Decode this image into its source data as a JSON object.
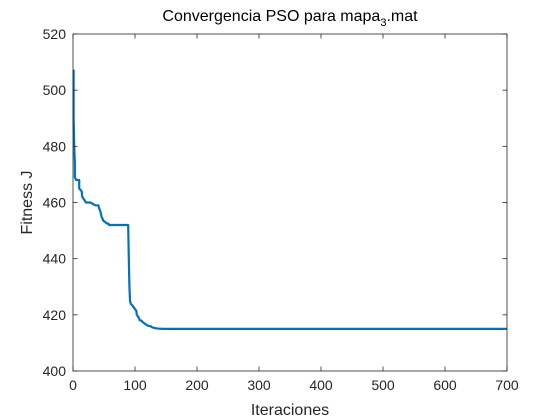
{
  "chart_data": {
    "type": "line",
    "title_main": "Convergencia PSO para mapa",
    "title_sub": "3",
    "title_suffix": ".mat",
    "xlabel": "Iteraciones",
    "ylabel": "Fitness J",
    "xlim": [
      0,
      700
    ],
    "ylim": [
      400,
      520
    ],
    "xticks": [
      0,
      100,
      200,
      300,
      400,
      500,
      600,
      700
    ],
    "yticks": [
      400,
      420,
      440,
      460,
      480,
      500,
      520
    ],
    "grid": false,
    "series": [
      {
        "color": "#0072BD",
        "x": [
          0,
          1,
          1,
          2,
          3,
          3,
          5,
          10,
          10,
          14,
          15,
          15,
          18,
          21,
          28,
          36,
          41,
          42,
          44,
          46,
          48,
          49,
          52,
          55,
          57,
          58,
          64,
          66,
          72,
          89,
          90,
          91,
          92,
          93,
          97,
          100,
          102,
          103,
          106,
          108,
          110,
          112,
          115,
          118,
          122,
          125,
          127,
          130,
          134,
          138,
          145,
          160,
          200,
          300,
          400,
          500,
          600,
          700
        ],
        "y": [
          507,
          507,
          490,
          480,
          474,
          469,
          468,
          468,
          465,
          464,
          462,
          462,
          461,
          460,
          460,
          459,
          459,
          458,
          457,
          455,
          454,
          453.5,
          453,
          452.5,
          452.5,
          452,
          452,
          452,
          452,
          452,
          440,
          430,
          425,
          424,
          423,
          422,
          421.5,
          420,
          419,
          418,
          418,
          417.5,
          417,
          416.5,
          416,
          416,
          415.6,
          415.4,
          415.2,
          415.1,
          415,
          415,
          415,
          415,
          415,
          415,
          415,
          415
        ]
      }
    ]
  }
}
